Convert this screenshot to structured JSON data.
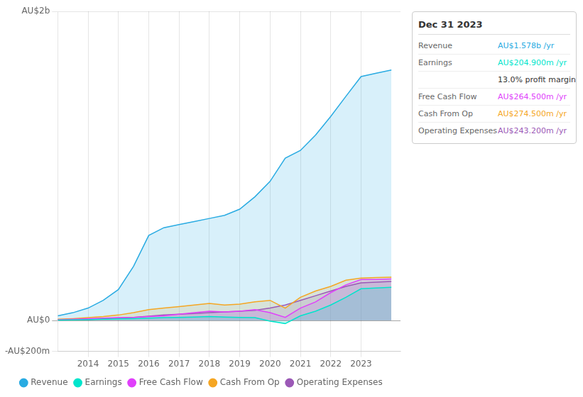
{
  "chart_data": {
    "type": "line",
    "x": [
      2013,
      2013.5,
      2014,
      2014.5,
      2015,
      2015.5,
      2016,
      2016.5,
      2017,
      2017.5,
      2018,
      2018.5,
      2019,
      2019.5,
      2020,
      2020.5,
      2021,
      2021.5,
      2022,
      2022.5,
      2023,
      2023.5,
      2024
    ],
    "series": [
      {
        "name": "Revenue",
        "color": "#29abe2",
        "values": [
          30,
          50,
          80,
          130,
          200,
          350,
          550,
          600,
          620,
          640,
          660,
          680,
          720,
          800,
          900,
          1050,
          1100,
          1200,
          1320,
          1450,
          1578,
          1600,
          1620
        ]
      },
      {
        "name": "Earnings",
        "color": "#00e5cc",
        "values": [
          2,
          3,
          5,
          8,
          10,
          12,
          15,
          18,
          20,
          22,
          25,
          22,
          20,
          18,
          -5,
          -20,
          30,
          60,
          100,
          150,
          204.9,
          210,
          215
        ]
      },
      {
        "name": "Free Cash Flow",
        "color": "#e040fb",
        "values": [
          5,
          8,
          12,
          15,
          18,
          20,
          25,
          30,
          40,
          50,
          60,
          55,
          60,
          70,
          50,
          20,
          80,
          120,
          180,
          230,
          264.5,
          265,
          268
        ]
      },
      {
        "name": "Cash From Op",
        "color": "#f5a623",
        "values": [
          8,
          12,
          18,
          25,
          35,
          50,
          70,
          80,
          90,
          100,
          110,
          100,
          105,
          120,
          130,
          80,
          150,
          190,
          220,
          260,
          274.5,
          278,
          280
        ]
      },
      {
        "name": "Operating Expenses",
        "color": "#9b59b6",
        "values": [
          2,
          4,
          6,
          10,
          15,
          20,
          28,
          35,
          40,
          45,
          50,
          55,
          60,
          65,
          80,
          100,
          130,
          160,
          190,
          220,
          243.2,
          248,
          252
        ]
      }
    ],
    "xlim": [
      2013,
      2024.3
    ],
    "xticks": [
      2014,
      2015,
      2016,
      2017,
      2018,
      2019,
      2020,
      2021,
      2022,
      2023
    ],
    "ylim": [
      -200,
      2000
    ],
    "yticks": [
      {
        "value": -200,
        "label": "-AU$200m"
      },
      {
        "value": 0,
        "label": "AU$0"
      },
      {
        "value": 2000,
        "label": "AU$2b"
      }
    ],
    "grid": true,
    "legend": "bottom",
    "annotations": [
      {
        "text": "Dec 31 2023"
      },
      {
        "label": "Revenue",
        "text": "AU$1.578b /yr",
        "color": "#29abe2"
      },
      {
        "label": "Earnings",
        "text": "AU$204.900m /yr",
        "color": "#00e5cc"
      },
      {
        "text": "13.0% profit margin"
      },
      {
        "label": "Free Cash Flow",
        "text": "AU$264.500m /yr",
        "color": "#e040fb"
      },
      {
        "label": "Cash From Op",
        "text": "AU$274.500m /yr",
        "color": "#f5a623"
      },
      {
        "label": "Operating Expenses",
        "text": "AU$243.200m /yr",
        "color": "#9b59b6"
      }
    ]
  }
}
